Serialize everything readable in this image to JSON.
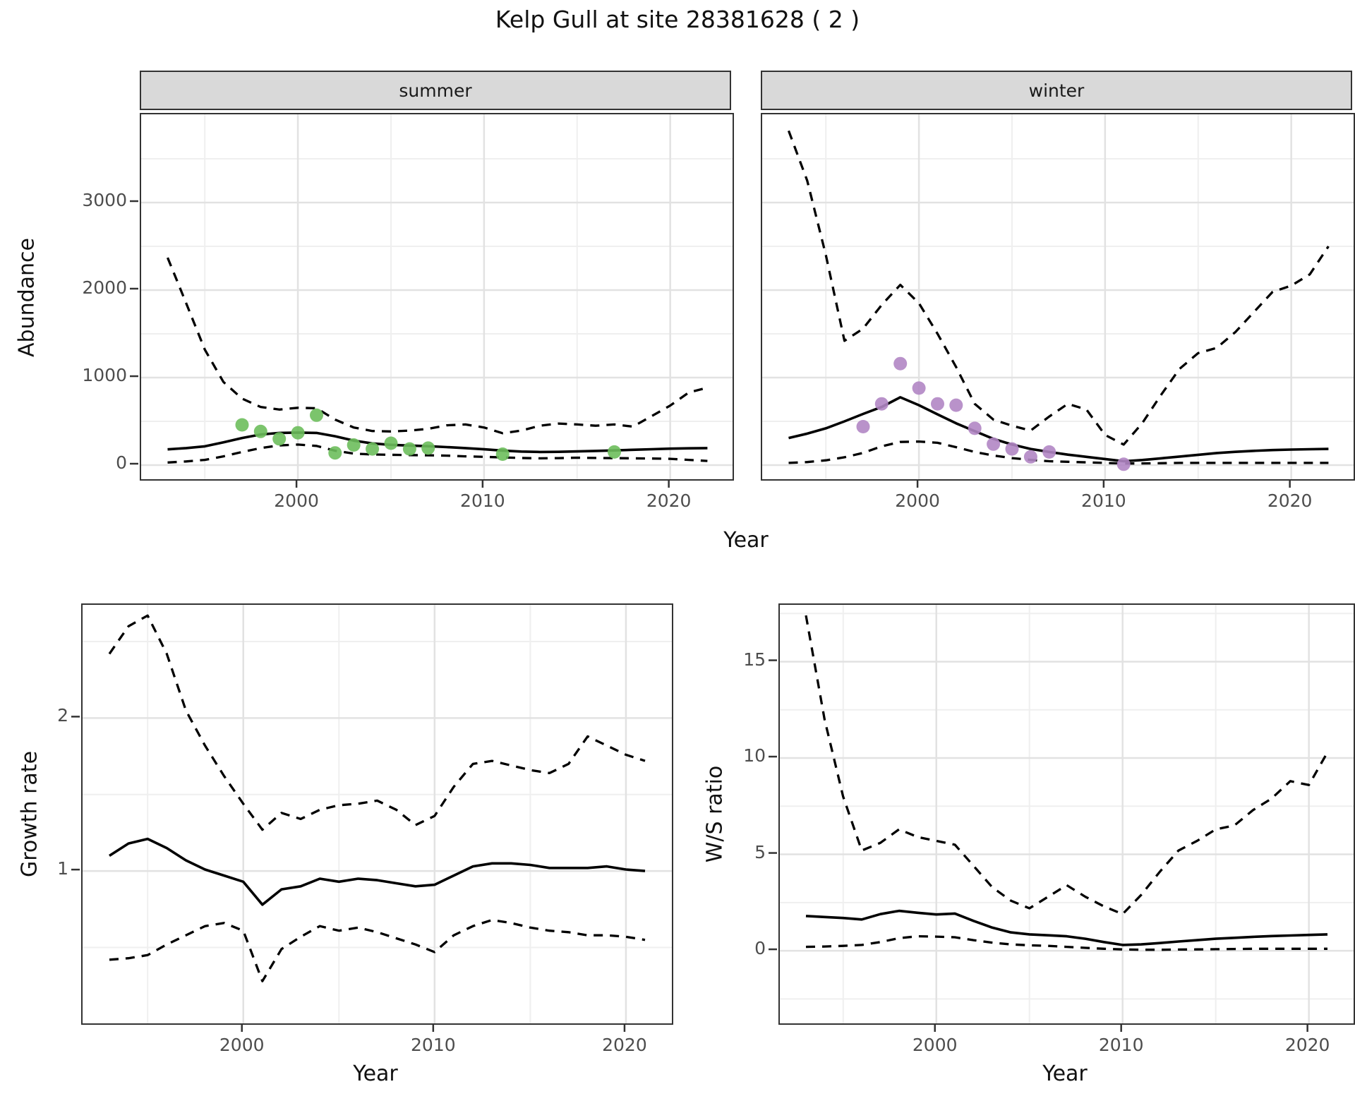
{
  "title": "Kelp Gull at site 28381628 ( 2 )",
  "labels": {
    "facet_summer": "summer",
    "facet_winter": "winter",
    "y_axis_abundance": "Abundance",
    "y_axis_growth": "Growth rate",
    "y_axis_ws": "W/S ratio",
    "x_axis_top": "Year",
    "x_axis_growth": "Year",
    "x_axis_ws": "Year"
  },
  "style": {
    "summer_point_color": "#6dbe5c",
    "winter_point_color": "#b186c4",
    "line_color": "#000000",
    "strip_background": "#d9d9d9",
    "panel_border": "#333333",
    "major_grid": "#e2e2e2",
    "minor_grid": "#efefef",
    "tick_text": "#4d4d4d"
  },
  "chart_data": [
    {
      "id": "abundance_summer",
      "type": "line",
      "facet": "summer",
      "xlabel": "Year",
      "ylabel": "Abundance",
      "xlim": [
        1991.58,
        2023.35
      ],
      "ylim": [
        -161,
        4008
      ],
      "xticks": [
        2000,
        2010,
        2020
      ],
      "yticks": [
        0,
        1000,
        2000,
        3000
      ],
      "x": [
        1993,
        1994,
        1995,
        1996,
        1997,
        1998,
        1999,
        2000,
        2001,
        2002,
        2003,
        2004,
        2005,
        2006,
        2007,
        2008,
        2009,
        2010,
        2011,
        2012,
        2013,
        2014,
        2015,
        2016,
        2017,
        2018,
        2019,
        2020,
        2021,
        2022
      ],
      "series": [
        {
          "name": "fit",
          "linestyle": "solid",
          "values": [
            180,
            195,
            215,
            260,
            310,
            350,
            368,
            372,
            368,
            330,
            280,
            248,
            232,
            224,
            216,
            206,
            195,
            181,
            166,
            155,
            150,
            152,
            157,
            162,
            168,
            175,
            182,
            188,
            192,
            195
          ]
        },
        {
          "name": "upper_ci",
          "linestyle": "dashed",
          "values": [
            2370,
            1850,
            1320,
            950,
            760,
            665,
            635,
            655,
            650,
            520,
            430,
            390,
            385,
            395,
            415,
            455,
            465,
            430,
            365,
            395,
            450,
            475,
            465,
            450,
            465,
            440,
            560,
            680,
            830,
            885
          ]
        },
        {
          "name": "lower_ci",
          "linestyle": "dashed",
          "values": [
            30,
            42,
            60,
            100,
            150,
            195,
            225,
            235,
            220,
            165,
            132,
            122,
            118,
            115,
            112,
            108,
            100,
            95,
            88,
            82,
            78,
            80,
            85,
            82,
            80,
            78,
            75,
            72,
            60,
            48
          ]
        }
      ],
      "observations": {
        "color": "#6dbe5c",
        "points": [
          [
            1997,
            460
          ],
          [
            1998,
            385
          ],
          [
            1999,
            300
          ],
          [
            2000,
            370
          ],
          [
            2001,
            570
          ],
          [
            2002,
            140
          ],
          [
            2003,
            230
          ],
          [
            2004,
            185
          ],
          [
            2005,
            250
          ],
          [
            2006,
            185
          ],
          [
            2007,
            195
          ],
          [
            2011,
            125
          ],
          [
            2017,
            150
          ]
        ]
      }
    },
    {
      "id": "abundance_winter",
      "type": "line",
      "facet": "winter",
      "xlabel": "Year",
      "ylabel": "Abundance",
      "xlim": [
        1991.58,
        2023.35
      ],
      "ylim": [
        -161,
        4008
      ],
      "xticks": [
        2000,
        2010,
        2020
      ],
      "yticks": [
        0,
        1000,
        2000,
        3000
      ],
      "x": [
        1993,
        1994,
        1995,
        1996,
        1997,
        1998,
        1999,
        2000,
        2001,
        2002,
        2003,
        2004,
        2005,
        2006,
        2007,
        2008,
        2009,
        2010,
        2011,
        2012,
        2013,
        2014,
        2015,
        2016,
        2017,
        2018,
        2019,
        2020,
        2021,
        2022
      ],
      "series": [
        {
          "name": "fit",
          "linestyle": "solid",
          "values": [
            310,
            360,
            420,
            500,
            585,
            665,
            775,
            685,
            580,
            478,
            388,
            300,
            235,
            185,
            150,
            120,
            95,
            70,
            45,
            58,
            78,
            98,
            118,
            138,
            152,
            163,
            172,
            178,
            182,
            185
          ]
        },
        {
          "name": "upper_ci",
          "linestyle": "dashed",
          "values": [
            3820,
            3250,
            2400,
            1420,
            1560,
            1830,
            2060,
            1850,
            1500,
            1120,
            700,
            520,
            450,
            395,
            555,
            700,
            635,
            345,
            235,
            480,
            800,
            1100,
            1280,
            1340,
            1520,
            1750,
            1980,
            2050,
            2180,
            2500
          ]
        },
        {
          "name": "lower_ci",
          "linestyle": "dashed",
          "values": [
            25,
            35,
            55,
            90,
            140,
            215,
            265,
            270,
            255,
            205,
            150,
            110,
            80,
            60,
            45,
            38,
            32,
            25,
            18,
            20,
            22,
            25,
            25,
            25,
            25,
            25,
            25,
            25,
            25,
            25
          ]
        }
      ],
      "observations": {
        "color": "#b186c4",
        "points": [
          [
            1997,
            440
          ],
          [
            1998,
            700
          ],
          [
            1999,
            1160
          ],
          [
            2000,
            880
          ],
          [
            2001,
            700
          ],
          [
            2002,
            685
          ],
          [
            2003,
            420
          ],
          [
            2004,
            240
          ],
          [
            2005,
            185
          ],
          [
            2006,
            95
          ],
          [
            2007,
            150
          ],
          [
            2011,
            10
          ]
        ]
      }
    },
    {
      "id": "growth_rate",
      "type": "line",
      "xlabel": "Year",
      "ylabel": "Growth rate",
      "xlim": [
        1991.6,
        2022.4
      ],
      "ylim": [
        0.004,
        2.74
      ],
      "xticks": [
        2000,
        2010,
        2020
      ],
      "yticks": [
        1,
        2
      ],
      "x": [
        1993,
        1994,
        1995,
        1996,
        1997,
        1998,
        1999,
        2000,
        2001,
        2002,
        2003,
        2004,
        2005,
        2006,
        2007,
        2008,
        2009,
        2010,
        2011,
        2012,
        2013,
        2014,
        2015,
        2016,
        2017,
        2018,
        2019,
        2020,
        2021
      ],
      "series": [
        {
          "name": "fit",
          "linestyle": "solid",
          "values": [
            1.1,
            1.18,
            1.21,
            1.15,
            1.07,
            1.01,
            0.97,
            0.93,
            0.78,
            0.88,
            0.9,
            0.95,
            0.93,
            0.95,
            0.94,
            0.92,
            0.9,
            0.91,
            0.97,
            1.03,
            1.05,
            1.05,
            1.04,
            1.02,
            1.02,
            1.02,
            1.03,
            1.01,
            1.0
          ]
        },
        {
          "name": "upper_ci",
          "linestyle": "dashed",
          "values": [
            2.42,
            2.6,
            2.67,
            2.42,
            2.05,
            1.82,
            1.62,
            1.44,
            1.27,
            1.38,
            1.34,
            1.4,
            1.43,
            1.44,
            1.46,
            1.4,
            1.3,
            1.36,
            1.55,
            1.7,
            1.72,
            1.69,
            1.66,
            1.64,
            1.7,
            1.88,
            1.82,
            1.76,
            1.72
          ]
        },
        {
          "name": "lower_ci",
          "linestyle": "dashed",
          "values": [
            0.42,
            0.43,
            0.45,
            0.52,
            0.58,
            0.64,
            0.66,
            0.61,
            0.28,
            0.49,
            0.57,
            0.64,
            0.61,
            0.63,
            0.6,
            0.56,
            0.52,
            0.47,
            0.58,
            0.64,
            0.68,
            0.66,
            0.63,
            0.61,
            0.6,
            0.58,
            0.58,
            0.57,
            0.55
          ]
        }
      ]
    },
    {
      "id": "ws_ratio",
      "type": "line",
      "xlabel": "Year",
      "ylabel": "W/S ratio",
      "xlim": [
        1991.6,
        2022.4
      ],
      "ylim": [
        -3.77,
        17.95
      ],
      "xticks": [
        2000,
        2010,
        2020
      ],
      "yticks": [
        0,
        5,
        10,
        15
      ],
      "x": [
        1993,
        1994,
        1995,
        1996,
        1997,
        1998,
        1999,
        2000,
        2001,
        2002,
        2003,
        2004,
        2005,
        2006,
        2007,
        2008,
        2009,
        2010,
        2011,
        2012,
        2013,
        2014,
        2015,
        2016,
        2017,
        2018,
        2019,
        2020,
        2021
      ],
      "series": [
        {
          "name": "fit",
          "linestyle": "solid",
          "values": [
            1.8,
            1.75,
            1.7,
            1.62,
            1.9,
            2.07,
            1.97,
            1.88,
            1.93,
            1.55,
            1.2,
            0.95,
            0.85,
            0.8,
            0.75,
            0.62,
            0.45,
            0.3,
            0.33,
            0.4,
            0.48,
            0.55,
            0.62,
            0.67,
            0.72,
            0.76,
            0.79,
            0.82,
            0.85
          ]
        },
        {
          "name": "upper_ci",
          "linestyle": "dashed",
          "values": [
            17.4,
            12.0,
            8.0,
            5.2,
            5.6,
            6.3,
            5.9,
            5.7,
            5.5,
            4.4,
            3.3,
            2.6,
            2.2,
            2.8,
            3.4,
            2.8,
            2.3,
            1.9,
            2.9,
            4.1,
            5.2,
            5.7,
            6.3,
            6.5,
            7.3,
            7.9,
            8.8,
            8.6,
            10.3
          ]
        },
        {
          "name": "lower_ci",
          "linestyle": "dashed",
          "values": [
            0.2,
            0.22,
            0.25,
            0.3,
            0.45,
            0.65,
            0.75,
            0.73,
            0.7,
            0.55,
            0.42,
            0.33,
            0.28,
            0.25,
            0.2,
            0.15,
            0.1,
            0.07,
            0.05,
            0.05,
            0.06,
            0.07,
            0.08,
            0.09,
            0.1,
            0.1,
            0.1,
            0.1,
            0.1
          ]
        }
      ]
    }
  ]
}
